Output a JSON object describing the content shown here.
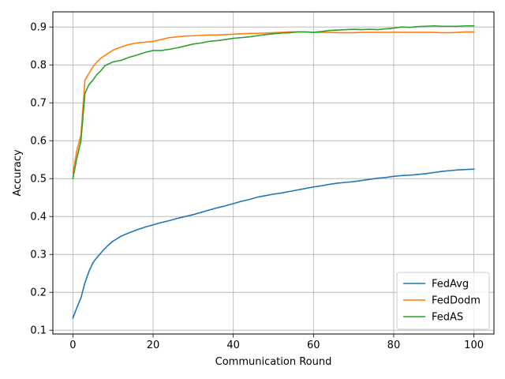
{
  "chart_data": {
    "type": "line",
    "title": "",
    "xlabel": "Communication Round",
    "ylabel": "Accuracy",
    "xlim": [
      -5,
      105
    ],
    "ylim": [
      0.09,
      0.94
    ],
    "xticks": [
      0,
      20,
      40,
      60,
      80,
      100
    ],
    "yticks": [
      0.1,
      0.2,
      0.3,
      0.4,
      0.5,
      0.6,
      0.7,
      0.8,
      0.9
    ],
    "grid": true,
    "legend_position": "bottom-right",
    "series": [
      {
        "name": "FedAvg",
        "color": "#1f77b4",
        "x": [
          0,
          1,
          2,
          3,
          4,
          5,
          6,
          7,
          8,
          9,
          10,
          12,
          14,
          16,
          18,
          20,
          22,
          24,
          26,
          28,
          30,
          32,
          34,
          36,
          38,
          40,
          42,
          44,
          46,
          48,
          50,
          52,
          54,
          56,
          58,
          60,
          62,
          64,
          66,
          68,
          70,
          72,
          74,
          76,
          78,
          80,
          82,
          84,
          86,
          88,
          90,
          92,
          94,
          96,
          98,
          100
        ],
        "y": [
          0.132,
          0.16,
          0.185,
          0.225,
          0.255,
          0.278,
          0.292,
          0.304,
          0.316,
          0.326,
          0.335,
          0.348,
          0.357,
          0.365,
          0.372,
          0.378,
          0.384,
          0.389,
          0.395,
          0.4,
          0.405,
          0.411,
          0.417,
          0.423,
          0.428,
          0.434,
          0.44,
          0.445,
          0.451,
          0.455,
          0.459,
          0.462,
          0.466,
          0.47,
          0.474,
          0.478,
          0.481,
          0.485,
          0.488,
          0.49,
          0.492,
          0.495,
          0.498,
          0.501,
          0.503,
          0.506,
          0.508,
          0.509,
          0.511,
          0.513,
          0.516,
          0.519,
          0.521,
          0.523,
          0.524,
          0.525
        ]
      },
      {
        "name": "FedDodm",
        "color": "#ff7f0e",
        "x": [
          0,
          1,
          2,
          3,
          4,
          5,
          6,
          7,
          8,
          9,
          10,
          12,
          14,
          16,
          18,
          20,
          22,
          24,
          26,
          28,
          30,
          32,
          34,
          36,
          38,
          40,
          42,
          44,
          46,
          48,
          50,
          52,
          54,
          56,
          58,
          60,
          62,
          64,
          66,
          68,
          70,
          72,
          74,
          76,
          78,
          80,
          82,
          84,
          86,
          88,
          90,
          92,
          94,
          96,
          98,
          100
        ],
        "y": [
          0.515,
          0.575,
          0.615,
          0.76,
          0.778,
          0.795,
          0.808,
          0.818,
          0.825,
          0.832,
          0.839,
          0.847,
          0.854,
          0.858,
          0.86,
          0.862,
          0.867,
          0.872,
          0.874,
          0.876,
          0.877,
          0.878,
          0.879,
          0.879,
          0.88,
          0.881,
          0.882,
          0.883,
          0.883,
          0.884,
          0.885,
          0.886,
          0.887,
          0.887,
          0.887,
          0.886,
          0.886,
          0.886,
          0.885,
          0.885,
          0.885,
          0.886,
          0.886,
          0.886,
          0.886,
          0.886,
          0.886,
          0.886,
          0.886,
          0.886,
          0.886,
          0.885,
          0.885,
          0.886,
          0.887,
          0.887
        ]
      },
      {
        "name": "FedAS",
        "color": "#2ca02c",
        "x": [
          0,
          1,
          2,
          3,
          4,
          5,
          6,
          7,
          8,
          9,
          10,
          12,
          14,
          16,
          18,
          20,
          22,
          24,
          26,
          28,
          30,
          32,
          34,
          36,
          38,
          40,
          42,
          44,
          46,
          48,
          50,
          52,
          54,
          56,
          58,
          60,
          62,
          64,
          66,
          68,
          70,
          72,
          74,
          76,
          78,
          80,
          82,
          84,
          86,
          88,
          90,
          92,
          94,
          96,
          98,
          100
        ],
        "y": [
          0.5,
          0.555,
          0.6,
          0.725,
          0.748,
          0.76,
          0.775,
          0.785,
          0.798,
          0.803,
          0.808,
          0.812,
          0.82,
          0.826,
          0.833,
          0.838,
          0.838,
          0.841,
          0.845,
          0.85,
          0.855,
          0.858,
          0.862,
          0.864,
          0.867,
          0.87,
          0.872,
          0.874,
          0.877,
          0.88,
          0.882,
          0.884,
          0.885,
          0.887,
          0.887,
          0.886,
          0.888,
          0.891,
          0.892,
          0.893,
          0.894,
          0.893,
          0.894,
          0.893,
          0.895,
          0.897,
          0.9,
          0.899,
          0.901,
          0.902,
          0.903,
          0.902,
          0.902,
          0.902,
          0.903,
          0.903
        ]
      }
    ]
  }
}
